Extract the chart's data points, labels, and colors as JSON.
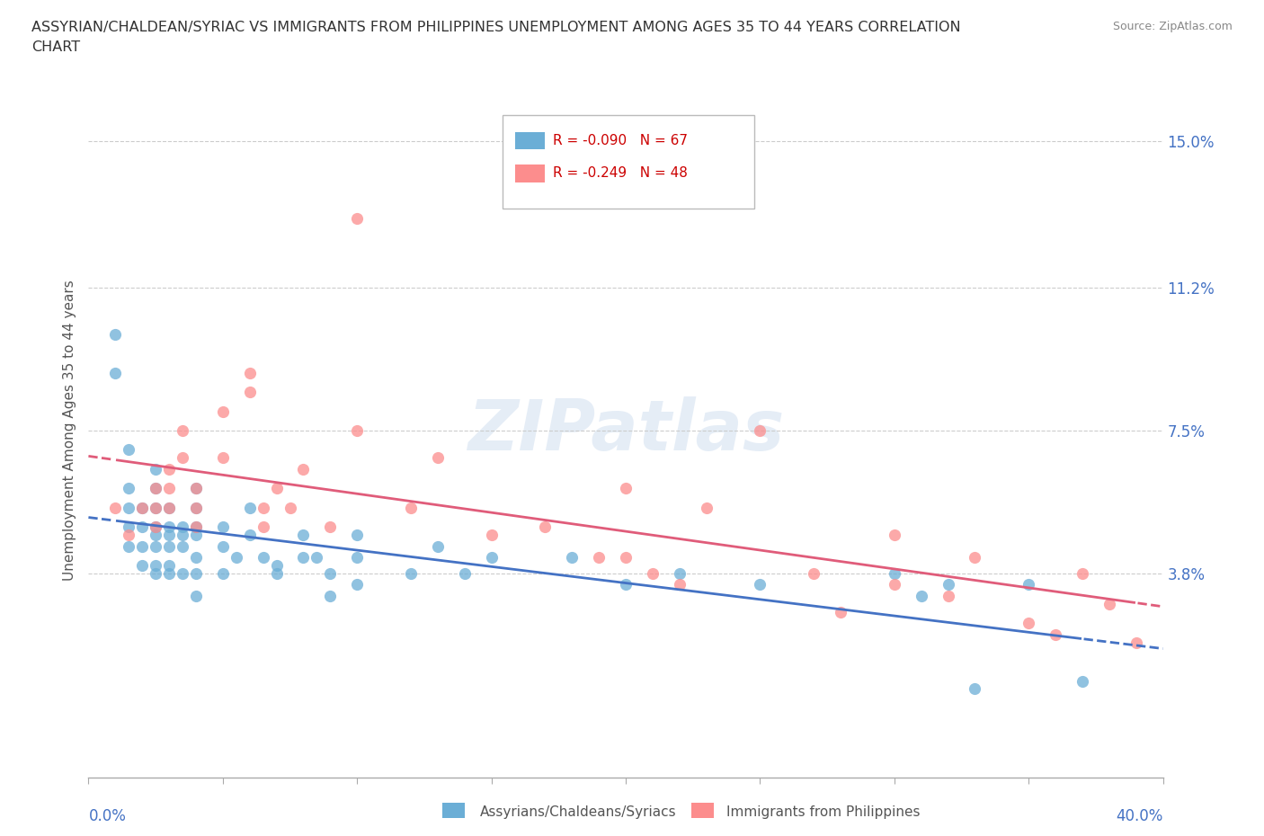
{
  "title_line1": "ASSYRIAN/CHALDEAN/SYRIAC VS IMMIGRANTS FROM PHILIPPINES UNEMPLOYMENT AMONG AGES 35 TO 44 YEARS CORRELATION",
  "title_line2": "CHART",
  "source": "Source: ZipAtlas.com",
  "ylabel": "Unemployment Among Ages 35 to 44 years",
  "xmin": 0.0,
  "xmax": 0.4,
  "ymin": -0.015,
  "ymax": 0.165,
  "r_blue": -0.09,
  "n_blue": 67,
  "r_pink": -0.249,
  "n_pink": 48,
  "blue_color": "#6baed6",
  "pink_color": "#fc8d8d",
  "blue_line_color": "#4472c4",
  "pink_line_color": "#e05c7a",
  "blue_label": "Assyrians/Chaldeans/Syriacs",
  "pink_label": "Immigrants from Philippines",
  "watermark": "ZIPatlas",
  "ytick_vals": [
    0.038,
    0.075,
    0.112,
    0.15
  ],
  "ytick_labels": [
    "3.8%",
    "7.5%",
    "11.2%",
    "15.0%"
  ],
  "blue_scatter_x": [
    0.01,
    0.01,
    0.015,
    0.015,
    0.015,
    0.015,
    0.015,
    0.02,
    0.02,
    0.02,
    0.02,
    0.025,
    0.025,
    0.025,
    0.025,
    0.025,
    0.025,
    0.025,
    0.025,
    0.03,
    0.03,
    0.03,
    0.03,
    0.03,
    0.03,
    0.035,
    0.035,
    0.035,
    0.035,
    0.04,
    0.04,
    0.04,
    0.04,
    0.04,
    0.04,
    0.04,
    0.05,
    0.05,
    0.05,
    0.055,
    0.06,
    0.06,
    0.065,
    0.07,
    0.07,
    0.08,
    0.08,
    0.085,
    0.09,
    0.09,
    0.1,
    0.1,
    0.1,
    0.12,
    0.13,
    0.14,
    0.15,
    0.18,
    0.2,
    0.22,
    0.25,
    0.3,
    0.31,
    0.32,
    0.33,
    0.35,
    0.37
  ],
  "blue_scatter_y": [
    0.1,
    0.09,
    0.07,
    0.06,
    0.055,
    0.05,
    0.045,
    0.055,
    0.05,
    0.045,
    0.04,
    0.065,
    0.06,
    0.055,
    0.05,
    0.048,
    0.045,
    0.04,
    0.038,
    0.055,
    0.05,
    0.048,
    0.045,
    0.04,
    0.038,
    0.05,
    0.048,
    0.045,
    0.038,
    0.06,
    0.055,
    0.05,
    0.048,
    0.042,
    0.038,
    0.032,
    0.05,
    0.045,
    0.038,
    0.042,
    0.055,
    0.048,
    0.042,
    0.04,
    0.038,
    0.048,
    0.042,
    0.042,
    0.038,
    0.032,
    0.048,
    0.042,
    0.035,
    0.038,
    0.045,
    0.038,
    0.042,
    0.042,
    0.035,
    0.038,
    0.035,
    0.038,
    0.032,
    0.035,
    0.008,
    0.035,
    0.01
  ],
  "pink_scatter_x": [
    0.01,
    0.015,
    0.02,
    0.025,
    0.025,
    0.025,
    0.03,
    0.03,
    0.03,
    0.035,
    0.035,
    0.04,
    0.04,
    0.04,
    0.05,
    0.05,
    0.06,
    0.06,
    0.065,
    0.065,
    0.07,
    0.075,
    0.08,
    0.09,
    0.1,
    0.1,
    0.12,
    0.13,
    0.15,
    0.17,
    0.19,
    0.2,
    0.22,
    0.23,
    0.25,
    0.27,
    0.3,
    0.32,
    0.33,
    0.35,
    0.36,
    0.37,
    0.38,
    0.39,
    0.2,
    0.21,
    0.28,
    0.3
  ],
  "pink_scatter_y": [
    0.055,
    0.048,
    0.055,
    0.06,
    0.055,
    0.05,
    0.065,
    0.06,
    0.055,
    0.075,
    0.068,
    0.06,
    0.055,
    0.05,
    0.08,
    0.068,
    0.09,
    0.085,
    0.055,
    0.05,
    0.06,
    0.055,
    0.065,
    0.05,
    0.13,
    0.075,
    0.055,
    0.068,
    0.048,
    0.05,
    0.042,
    0.06,
    0.035,
    0.055,
    0.075,
    0.038,
    0.048,
    0.032,
    0.042,
    0.025,
    0.022,
    0.038,
    0.03,
    0.02,
    0.042,
    0.038,
    0.028,
    0.035
  ]
}
